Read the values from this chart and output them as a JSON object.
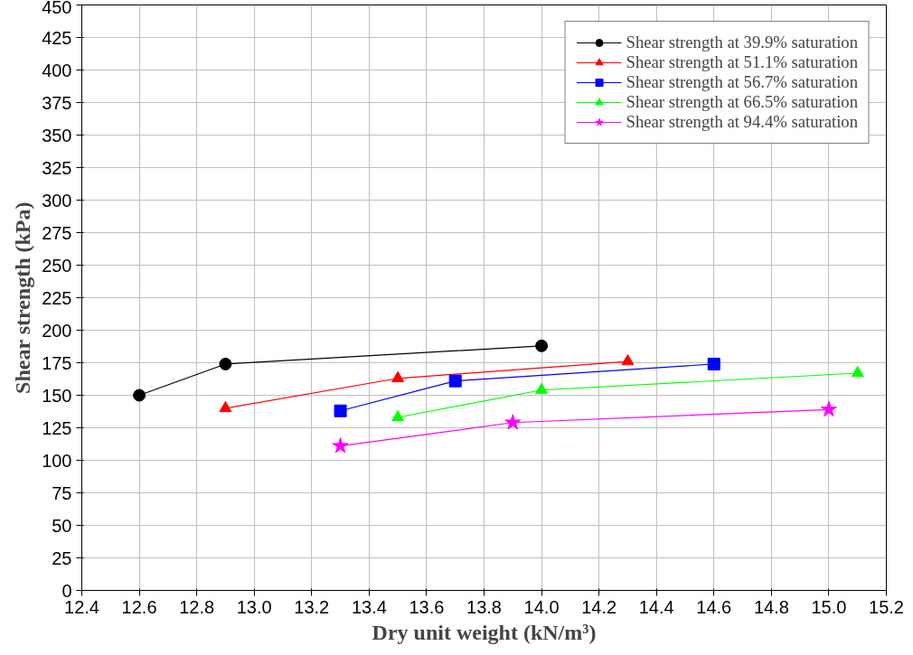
{
  "chart_data": {
    "type": "line",
    "xlabel": "Dry unit weight (kN/m³)",
    "ylabel": "Shear strength (kPa)",
    "xlim": [
      12.4,
      15.2
    ],
    "xticks": [
      12.4,
      12.6,
      12.8,
      {
        "value": 13.0,
        "label": "13.0"
      },
      13.2,
      13.4,
      13.6,
      13.8,
      {
        "value": 14.0,
        "label": "14.0"
      },
      14.2,
      14.4,
      14.6,
      14.8,
      {
        "value": 15.0,
        "label": "15.0"
      },
      15.2
    ],
    "ylim": [
      0,
      450
    ],
    "yticks": [
      0,
      25,
      50,
      75,
      100,
      125,
      150,
      175,
      200,
      225,
      250,
      275,
      300,
      325,
      350,
      375,
      400,
      425,
      450
    ],
    "grid": true,
    "legend": "top right",
    "line_style": "solid",
    "series": [
      {
        "name": "Shear strength at 39.9% saturation",
        "color": "#000000",
        "marker": "circle",
        "x": [
          12.6,
          12.9,
          14.0
        ],
        "values": [
          150,
          174,
          188
        ]
      },
      {
        "name": "Shear strength at 51.1% saturation",
        "color": "#ff0000",
        "marker": "triangle",
        "x": [
          12.9,
          13.5,
          14.3
        ],
        "values": [
          140,
          163,
          176
        ]
      },
      {
        "name": "Shear strength at 56.7% saturation",
        "color": "#0000ff",
        "marker": "square",
        "x": [
          13.3,
          13.7,
          14.6
        ],
        "values": [
          138,
          161,
          174
        ]
      },
      {
        "name": "Shear strength at 66.5% saturation",
        "color": "#00ff00",
        "marker": "triangle",
        "x": [
          13.5,
          14.0,
          15.1
        ],
        "values": [
          133,
          154,
          167
        ]
      },
      {
        "name": "Shear strength at 94.4% saturation",
        "color": "#ff00ff",
        "marker": "star",
        "x": [
          13.3,
          13.9,
          15.0
        ],
        "values": [
          111,
          129,
          139
        ]
      }
    ]
  }
}
